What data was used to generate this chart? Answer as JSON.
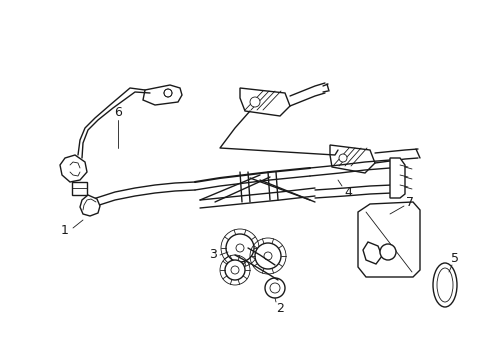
{
  "bg_color": "#ffffff",
  "line_color": "#1a1a1a",
  "fig_width": 4.89,
  "fig_height": 3.6,
  "dpi": 100,
  "lw": 1.0,
  "tlw": 0.6
}
